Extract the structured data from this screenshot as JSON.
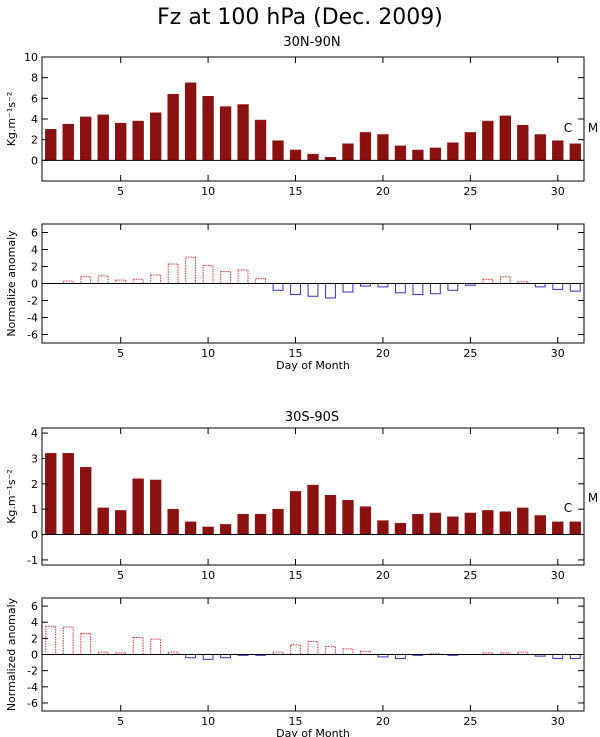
{
  "title": "Fz at 100 hPa (Dec. 2009)",
  "colors": {
    "bar_fill": "#8b1010",
    "positive_anomaly": "#e03030",
    "negative_anomaly": "#3030c0",
    "axis": "#000000"
  },
  "panels": [
    {
      "title": "30N-90N",
      "side_letters": [
        "C",
        "M"
      ],
      "top": {
        "ylabel": "Kg.m⁻¹s⁻²",
        "yticks": [
          "0",
          "2",
          "4",
          "6",
          "8",
          "10"
        ],
        "xticks": [
          "5",
          "10",
          "15",
          "20",
          "25",
          "30"
        ]
      },
      "bottom": {
        "ylabel": "Normalize anomaly",
        "yticks": [
          "-6",
          "-4",
          "-2",
          "0",
          "2",
          "4",
          "6"
        ],
        "xticks": [
          "5",
          "10",
          "15",
          "20",
          "25",
          "30"
        ],
        "xlabel": "Day of Month"
      }
    },
    {
      "title": "30S-90S",
      "side_letters": [
        "C",
        "M"
      ],
      "top": {
        "ylabel": "Kg.m⁻¹s⁻²",
        "yticks": [
          "-1",
          "0",
          "1",
          "2",
          "3",
          "4"
        ],
        "xticks": [
          "5",
          "10",
          "15",
          "20",
          "25",
          "30"
        ]
      },
      "bottom": {
        "ylabel": "Normalized anomaly",
        "yticks": [
          "-6",
          "-4",
          "-2",
          "0",
          "2",
          "4",
          "6"
        ],
        "xticks": [
          "5",
          "10",
          "15",
          "20",
          "25",
          "30"
        ],
        "xlabel": "Day of Month"
      }
    }
  ],
  "chart_data": [
    {
      "type": "bar",
      "title": "30N-90N",
      "ylabel": "Kg.m⁻¹s⁻²",
      "x": [
        1,
        2,
        3,
        4,
        5,
        6,
        7,
        8,
        9,
        10,
        11,
        12,
        13,
        14,
        15,
        16,
        17,
        18,
        19,
        20,
        21,
        22,
        23,
        24,
        25,
        26,
        27,
        28,
        29,
        30,
        31
      ],
      "values": [
        3.0,
        3.5,
        4.2,
        4.4,
        3.6,
        3.8,
        4.6,
        6.4,
        7.5,
        6.2,
        5.2,
        5.4,
        3.9,
        1.9,
        1.0,
        0.6,
        0.3,
        1.6,
        2.7,
        2.5,
        1.4,
        1.0,
        1.2,
        1.7,
        2.7,
        3.8,
        4.3,
        3.4,
        2.5,
        1.9,
        1.6
      ],
      "xlim": [
        0.5,
        31.5
      ],
      "ylim": [
        -2,
        10
      ],
      "xticks": [
        5,
        10,
        15,
        20,
        25,
        30
      ],
      "yticks": [
        0,
        2,
        4,
        6,
        8,
        10
      ]
    },
    {
      "type": "bar",
      "title": "",
      "xlabel": "Day of Month",
      "ylabel": "Normalize anomaly",
      "x": [
        1,
        2,
        3,
        4,
        5,
        6,
        7,
        8,
        9,
        10,
        11,
        12,
        13,
        14,
        15,
        16,
        17,
        18,
        19,
        20,
        21,
        22,
        23,
        24,
        25,
        26,
        27,
        28,
        29,
        30,
        31
      ],
      "values": [
        0.0,
        0.3,
        0.8,
        0.9,
        0.4,
        0.5,
        1.0,
        2.3,
        3.1,
        2.1,
        1.4,
        1.6,
        0.6,
        -0.8,
        -1.3,
        -1.5,
        -1.7,
        -1.0,
        -0.3,
        -0.4,
        -1.1,
        -1.3,
        -1.2,
        -0.8,
        -0.2,
        0.5,
        0.8,
        0.2,
        -0.4,
        -0.7,
        -0.9
      ],
      "xlim": [
        0.5,
        31.5
      ],
      "ylim": [
        -7,
        7
      ],
      "xticks": [
        5,
        10,
        15,
        20,
        25,
        30
      ],
      "yticks": [
        -6,
        -4,
        -2,
        0,
        2,
        4,
        6
      ]
    },
    {
      "type": "bar",
      "title": "30S-90S",
      "ylabel": "Kg.m⁻¹s⁻²",
      "x": [
        1,
        2,
        3,
        4,
        5,
        6,
        7,
        8,
        9,
        10,
        11,
        12,
        13,
        14,
        15,
        16,
        17,
        18,
        19,
        20,
        21,
        22,
        23,
        24,
        25,
        26,
        27,
        28,
        29,
        30,
        31
      ],
      "values": [
        3.2,
        3.2,
        2.65,
        1.05,
        0.95,
        2.2,
        2.15,
        1.0,
        0.5,
        0.3,
        0.4,
        0.8,
        0.8,
        1.0,
        1.7,
        1.95,
        1.55,
        1.35,
        1.1,
        0.55,
        0.45,
        0.8,
        0.85,
        0.7,
        0.85,
        0.95,
        0.9,
        1.05,
        0.75,
        0.5,
        0.5
      ],
      "xlim": [
        0.5,
        31.5
      ],
      "ylim": [
        -1.2,
        4.2
      ],
      "xticks": [
        5,
        10,
        15,
        20,
        25,
        30
      ],
      "yticks": [
        -1,
        0,
        1,
        2,
        3,
        4
      ]
    },
    {
      "type": "bar",
      "title": "",
      "xlabel": "Day of Month",
      "ylabel": "Normalized anomaly",
      "x": [
        1,
        2,
        3,
        4,
        5,
        6,
        7,
        8,
        9,
        10,
        11,
        12,
        13,
        14,
        15,
        16,
        17,
        18,
        19,
        20,
        21,
        22,
        23,
        24,
        25,
        26,
        27,
        28,
        29,
        30,
        31
      ],
      "values": [
        3.5,
        3.4,
        2.6,
        0.3,
        0.2,
        2.1,
        1.9,
        0.3,
        -0.4,
        -0.6,
        -0.4,
        -0.1,
        -0.1,
        0.3,
        1.2,
        1.6,
        1.0,
        0.7,
        0.4,
        -0.3,
        -0.5,
        -0.1,
        0.1,
        -0.1,
        0.0,
        0.2,
        0.2,
        0.3,
        -0.2,
        -0.5,
        -0.5
      ],
      "xlim": [
        0.5,
        31.5
      ],
      "ylim": [
        -7,
        7
      ],
      "xticks": [
        5,
        10,
        15,
        20,
        25,
        30
      ],
      "yticks": [
        -6,
        -4,
        -2,
        0,
        2,
        4,
        6
      ]
    }
  ]
}
